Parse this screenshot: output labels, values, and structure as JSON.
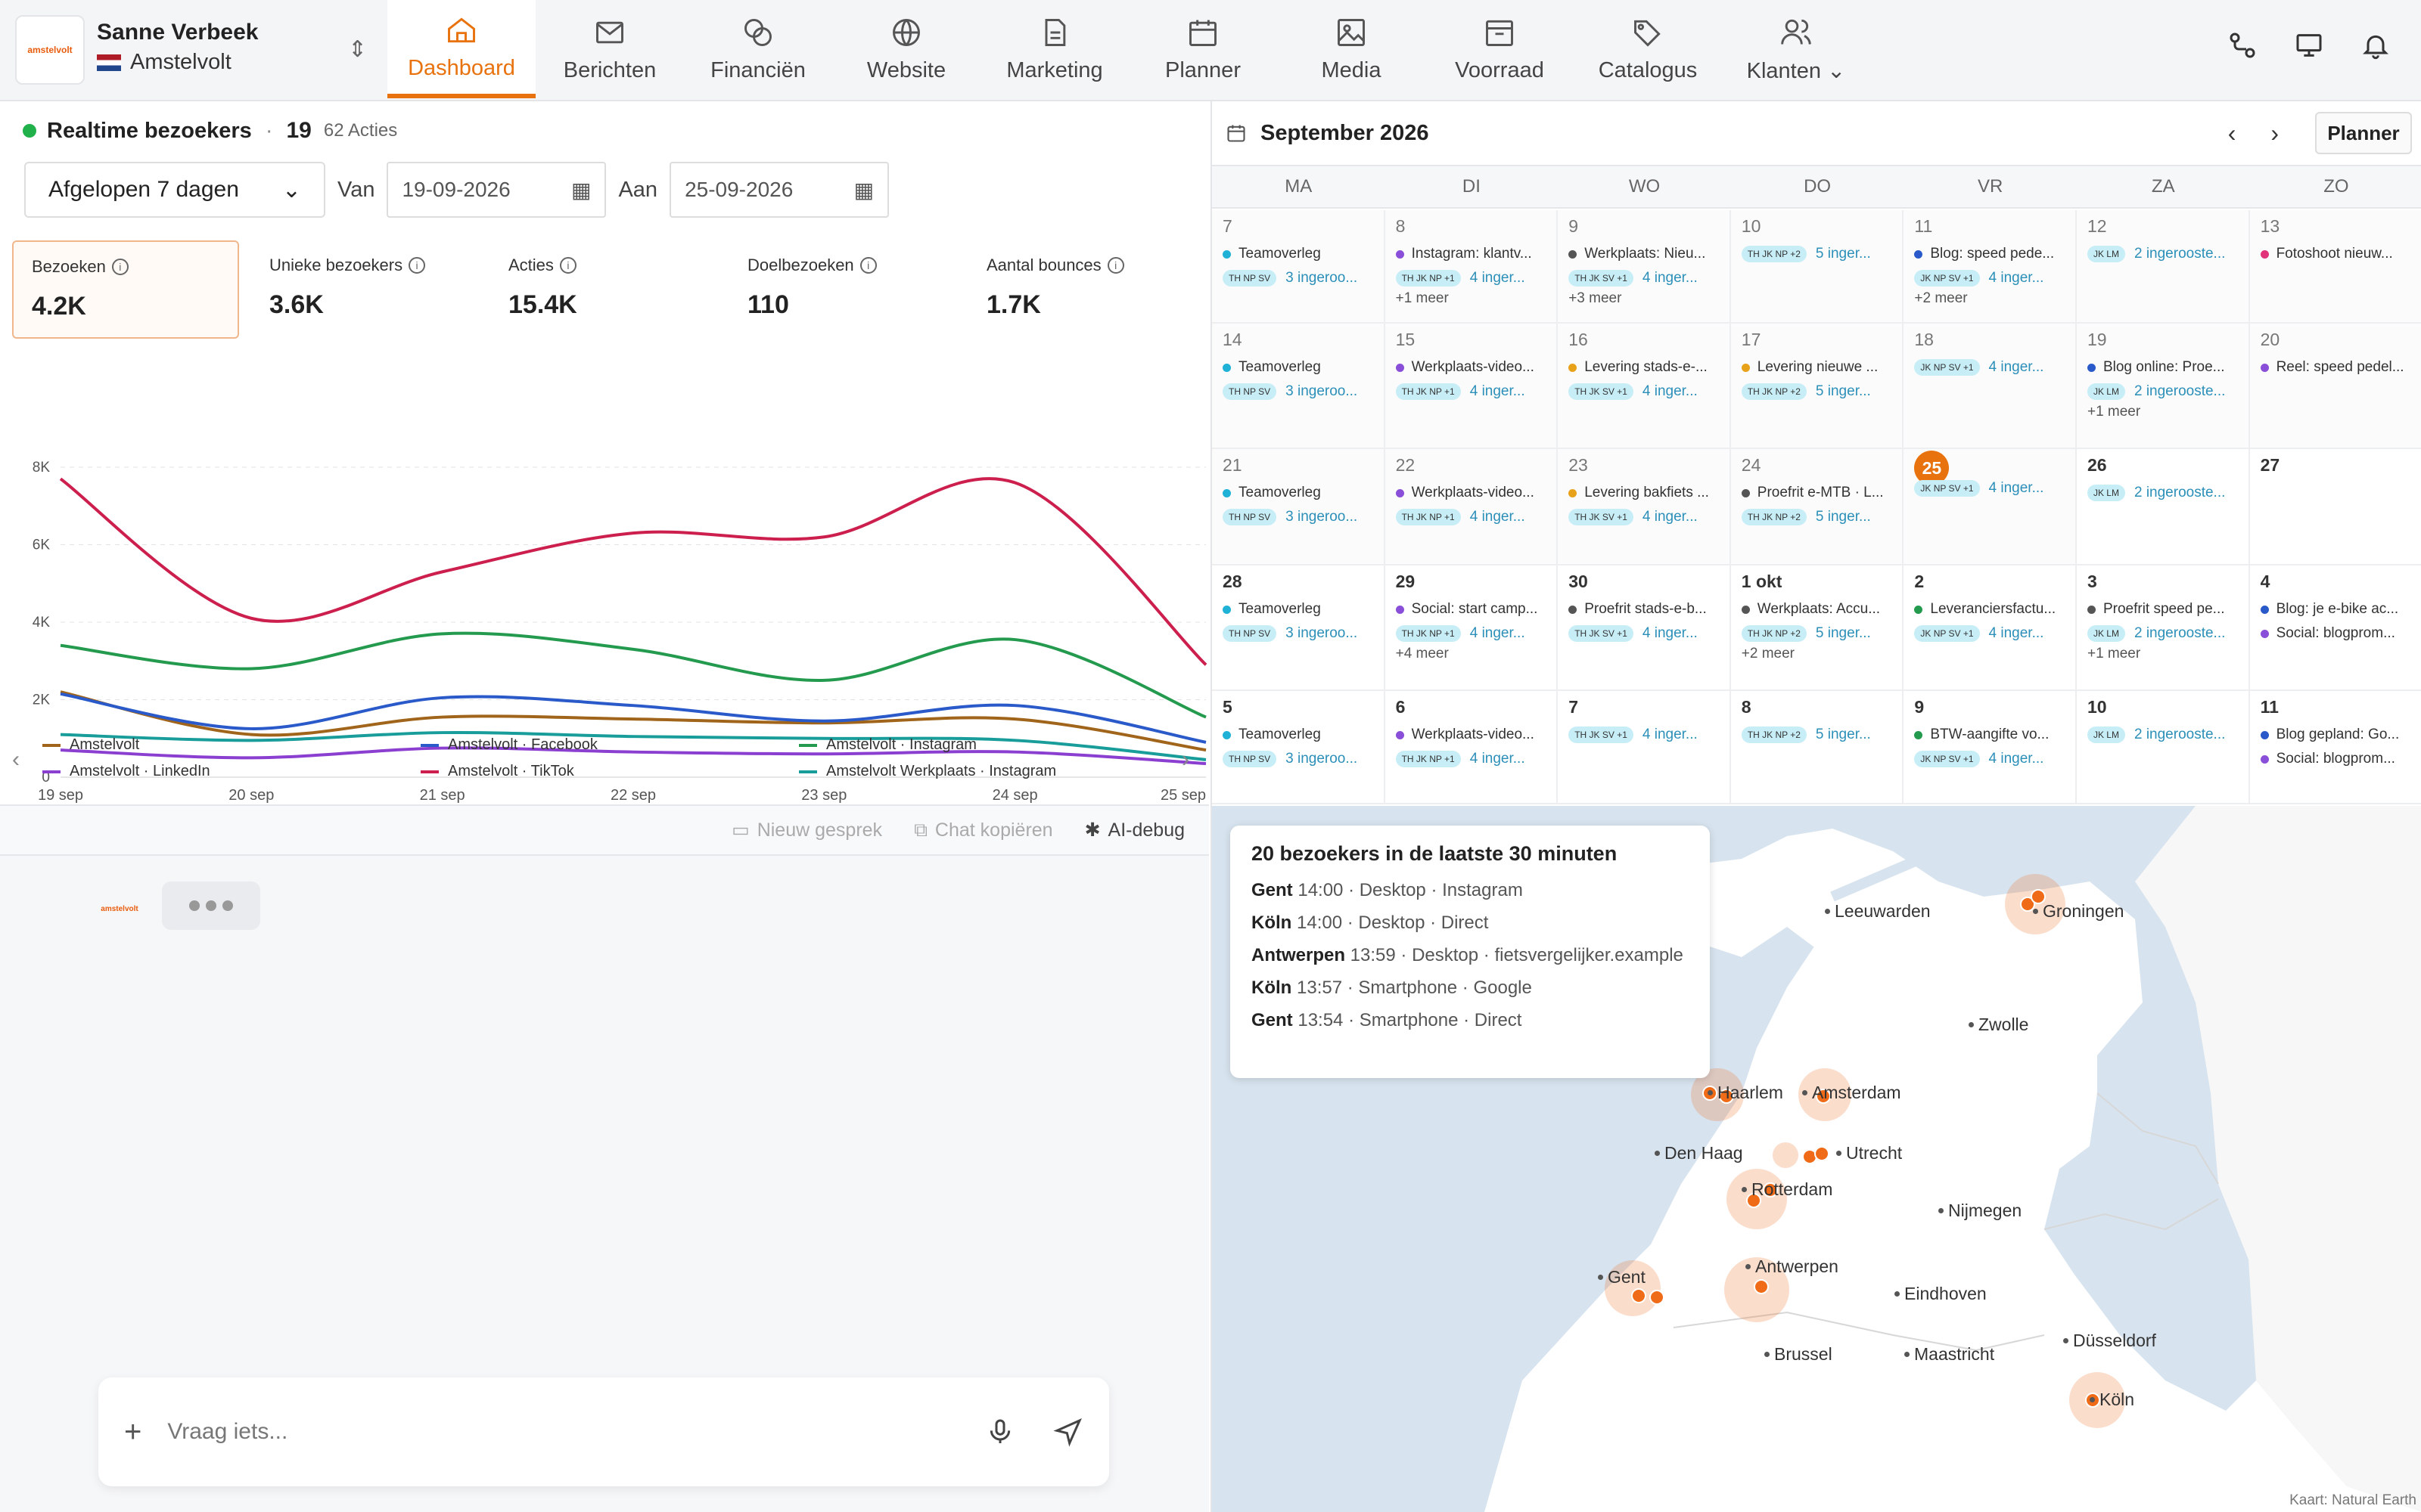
{
  "account": {
    "name": "Sanne Verbeek",
    "location": "Amstelvolt",
    "logo_text": "amstelvolt"
  },
  "nav": [
    {
      "label": "Dashboard",
      "icon": "home-icon",
      "active": true
    },
    {
      "label": "Berichten",
      "icon": "mail-icon"
    },
    {
      "label": "Financiën",
      "icon": "coins-icon"
    },
    {
      "label": "Website",
      "icon": "globe-icon"
    },
    {
      "label": "Marketing",
      "icon": "document-icon"
    },
    {
      "label": "Planner",
      "icon": "calendar-icon"
    },
    {
      "label": "Media",
      "icon": "image-icon"
    },
    {
      "label": "Voorraad",
      "icon": "box-icon"
    },
    {
      "label": "Catalogus",
      "icon": "tags-icon"
    },
    {
      "label": "Klanten",
      "icon": "users-icon"
    }
  ],
  "realtime": {
    "title": "Realtime bezoekers",
    "count": "19",
    "actions": "62 Acties"
  },
  "filters": {
    "period": "Afgelopen 7 dagen",
    "from_label": "Van",
    "from": "19-09-2026",
    "to_label": "Aan",
    "to": "25-09-2026"
  },
  "stats": [
    {
      "label": "Bezoeken",
      "value": "4.2K"
    },
    {
      "label": "Unieke bezoekers",
      "value": "3.6K"
    },
    {
      "label": "Acties",
      "value": "15.4K"
    },
    {
      "label": "Doelbezoeken",
      "value": "110"
    },
    {
      "label": "Aantal bounces",
      "value": "1.7K"
    }
  ],
  "chart_data": {
    "type": "line",
    "x": [
      "19 sep",
      "20 sep",
      "21 sep",
      "22 sep",
      "23 sep",
      "24 sep",
      "25 sep"
    ],
    "y_ticks": [
      "0",
      "2K",
      "4K",
      "6K",
      "8K"
    ],
    "ylim": [
      0,
      8000
    ],
    "grid": true,
    "legend_position": "bottom",
    "series": [
      {
        "name": "Amstelvolt",
        "color": "#a0651a",
        "values": [
          2200,
          1100,
          1550,
          1500,
          1400,
          1500,
          700
        ]
      },
      {
        "name": "Amstelvolt · Facebook",
        "color": "#2a5ac9",
        "values": [
          2150,
          1250,
          2050,
          1850,
          1450,
          1850,
          900
        ]
      },
      {
        "name": "Amstelvolt · Instagram",
        "color": "#239a4d",
        "values": [
          3400,
          2800,
          3700,
          3300,
          2500,
          3550,
          1550
        ]
      },
      {
        "name": "Amstelvolt · LinkedIn",
        "color": "#8b3fd0",
        "values": [
          700,
          500,
          750,
          650,
          600,
          650,
          350
        ]
      },
      {
        "name": "Amstelvolt · TikTok",
        "color": "#cc1f4d",
        "values": [
          7700,
          4100,
          5300,
          6300,
          6200,
          7600,
          2900
        ]
      },
      {
        "name": "Amstelvolt Werkplaats · Instagram",
        "color": "#189d9a",
        "values": [
          1100,
          950,
          1150,
          1050,
          1000,
          950,
          450
        ]
      }
    ]
  },
  "chat": {
    "new_chat": "Nieuw gesprek",
    "copy_chat": "Chat kopiëren",
    "debug": "AI-debug",
    "placeholder": "Vraag iets..."
  },
  "calendar": {
    "month": "September 2026",
    "planner_button": "Planner",
    "weekdays": [
      "MA",
      "DI",
      "WO",
      "DO",
      "VR",
      "ZA",
      "ZO"
    ],
    "weeks": [
      [
        {
          "day": "7",
          "events": [
            {
              "t": "Teamoverleg",
              "c": "#1fb1d6"
            }
          ],
          "chips": "TH NP SV",
          "count": "3 ingeroo..."
        },
        {
          "day": "8",
          "events": [
            {
              "t": "Instagram: klantv...",
              "c": "#8a4fd8"
            }
          ],
          "chips": "TH JK NP +1",
          "count": "4 inger...",
          "more": "+1 meer"
        },
        {
          "day": "9",
          "events": [
            {
              "t": "Werkplaats: Nieu...",
              "c": "#555"
            }
          ],
          "chips": "TH JK SV +1",
          "count": "4 inger...",
          "more": "+3 meer"
        },
        {
          "day": "10",
          "events": [],
          "chips": "TH JK NP +2",
          "count": "5 inger..."
        },
        {
          "day": "11",
          "events": [
            {
              "t": "Blog: speed pede...",
              "c": "#2a5ac9"
            }
          ],
          "chips": "JK NP SV +1",
          "count": "4 inger...",
          "more": "+2 meer"
        },
        {
          "day": "12",
          "events": [],
          "chips": "JK LM",
          "count": "2 ingeroostе..."
        },
        {
          "day": "13",
          "events": [
            {
              "t": "Fotoshoot nieuw...",
              "c": "#e0337a"
            }
          ]
        }
      ],
      [
        {
          "day": "14",
          "events": [
            {
              "t": "Teamoverleg",
              "c": "#1fb1d6"
            }
          ],
          "chips": "TH NP SV",
          "count": "3 ingeroo..."
        },
        {
          "day": "15",
          "events": [
            {
              "t": "Werkplaats-video...",
              "c": "#8a4fd8"
            }
          ],
          "chips": "TH JK NP +1",
          "count": "4 inger..."
        },
        {
          "day": "16",
          "events": [
            {
              "t": "Levering stads-e-...",
              "c": "#e8a21a"
            }
          ],
          "chips": "TH JK SV +1",
          "count": "4 inger..."
        },
        {
          "day": "17",
          "events": [
            {
              "t": "Levering nieuwe ...",
              "c": "#e8a21a"
            }
          ],
          "chips": "TH JK NP +2",
          "count": "5 inger..."
        },
        {
          "day": "18",
          "events": [],
          "chips": "JK NP SV +1",
          "count": "4 inger..."
        },
        {
          "day": "19",
          "events": [
            {
              "t": "Blog online: Proe...",
              "c": "#2a5ac9"
            }
          ],
          "chips": "JK LM",
          "count": "2 ingeroostе...",
          "more": "+1 meer"
        },
        {
          "day": "20",
          "events": [
            {
              "t": "Reel: speed pedel...",
              "c": "#8a4fd8"
            }
          ]
        }
      ],
      [
        {
          "day": "21",
          "events": [
            {
              "t": "Teamoverleg",
              "c": "#1fb1d6"
            }
          ],
          "chips": "TH NP SV",
          "count": "3 ingeroo..."
        },
        {
          "day": "22",
          "events": [
            {
              "t": "Werkplaats-video...",
              "c": "#8a4fd8"
            }
          ],
          "chips": "TH JK NP +1",
          "count": "4 inger..."
        },
        {
          "day": "23",
          "events": [
            {
              "t": "Levering bakfiets ...",
              "c": "#e8a21a"
            }
          ],
          "chips": "TH JK SV +1",
          "count": "4 inger..."
        },
        {
          "day": "24",
          "events": [
            {
              "t": "Proefrit e-MTB · L...",
              "c": "#555"
            }
          ],
          "chips": "TH JK NP +2",
          "count": "5 inger..."
        },
        {
          "day": "25",
          "today": true,
          "events": [],
          "chips": "JK NP SV +1",
          "count": "4 inger..."
        },
        {
          "day": "26",
          "bold": true,
          "events": [],
          "chips": "JK LM",
          "count": "2 ingeroostе..."
        },
        {
          "day": "27",
          "bold": true,
          "events": []
        }
      ],
      [
        {
          "day": "28",
          "bold": true,
          "events": [
            {
              "t": "Teamoverleg",
              "c": "#1fb1d6"
            }
          ],
          "chips": "TH NP SV",
          "count": "3 ingeroo..."
        },
        {
          "day": "29",
          "bold": true,
          "events": [
            {
              "t": "Social: start camp...",
              "c": "#8a4fd8"
            }
          ],
          "chips": "TH JK NP +1",
          "count": "4 inger...",
          "more": "+4 meer"
        },
        {
          "day": "30",
          "bold": true,
          "events": [
            {
              "t": "Proefrit stads-e-b...",
              "c": "#555"
            }
          ],
          "chips": "TH JK SV +1",
          "count": "4 inger..."
        },
        {
          "day": "1 okt",
          "bold": true,
          "events": [
            {
              "t": "Werkplaats: Accu...",
              "c": "#555"
            }
          ],
          "chips": "TH JK NP +2",
          "count": "5 inger...",
          "more": "+2 meer"
        },
        {
          "day": "2",
          "bold": true,
          "events": [
            {
              "t": "Leveranciersfactu...",
              "c": "#239a4d"
            }
          ],
          "chips": "JK NP SV +1",
          "count": "4 inger..."
        },
        {
          "day": "3",
          "bold": true,
          "events": [
            {
              "t": "Proefrit speed pe...",
              "c": "#555"
            }
          ],
          "chips": "JK LM",
          "count": "2 ingeroostе...",
          "more": "+1 meer"
        },
        {
          "day": "4",
          "bold": true,
          "events": [
            {
              "t": "Blog: je e-bike ac...",
              "c": "#2a5ac9"
            },
            {
              "t": "Social: blogprom...",
              "c": "#8a4fd8"
            }
          ]
        }
      ],
      [
        {
          "day": "5",
          "bold": true,
          "events": [
            {
              "t": "Teamoverleg",
              "c": "#1fb1d6"
            }
          ],
          "chips": "TH NP SV",
          "count": "3 ingeroo..."
        },
        {
          "day": "6",
          "bold": true,
          "events": [
            {
              "t": "Werkplaats-video...",
              "c": "#8a4fd8"
            }
          ],
          "chips": "TH JK NP +1",
          "count": "4 inger..."
        },
        {
          "day": "7",
          "bold": true,
          "events": [],
          "chips": "TH JK SV +1",
          "count": "4 inger..."
        },
        {
          "day": "8",
          "bold": true,
          "events": [],
          "chips": "TH JK NP +2",
          "count": "5 inger..."
        },
        {
          "day": "9",
          "bold": true,
          "events": [
            {
              "t": "BTW-aangifte vo...",
              "c": "#239a4d"
            }
          ],
          "chips": "JK NP SV +1",
          "count": "4 inger..."
        },
        {
          "day": "10",
          "bold": true,
          "events": [],
          "chips": "JK LM",
          "count": "2 ingeroostе..."
        },
        {
          "day": "11",
          "bold": true,
          "events": [
            {
              "t": "Blog gepland: Go...",
              "c": "#2a5ac9"
            },
            {
              "t": "Social: blogprom...",
              "c": "#8a4fd8"
            }
          ]
        }
      ]
    ]
  },
  "map": {
    "popup_title": "20 bezoekers in de laatste 30 minuten",
    "visitors": [
      {
        "city": "Gent",
        "detail": "14:00 · Desktop · Instagram"
      },
      {
        "city": "Köln",
        "detail": "14:00 · Desktop · Direct"
      },
      {
        "city": "Antwerpen",
        "detail": "13:59 · Desktop · fietsvergelijker.example"
      },
      {
        "city": "Köln",
        "detail": "13:57 · Smartphone · Google"
      },
      {
        "city": "Gent",
        "detail": "13:54 · Smartphone · Direct"
      }
    ],
    "cities": [
      "Leeuwarden",
      "Groningen",
      "Zwolle",
      "Haarlem",
      "Amsterdam",
      "Den Haag",
      "Utrecht",
      "Rotterdam",
      "Nijmegen",
      "Eindhoven",
      "Düsseldorf",
      "Antwerpen",
      "Gent",
      "Brussel",
      "Maastricht",
      "Köln"
    ],
    "attribution": "Kaart: Natural Earth"
  }
}
